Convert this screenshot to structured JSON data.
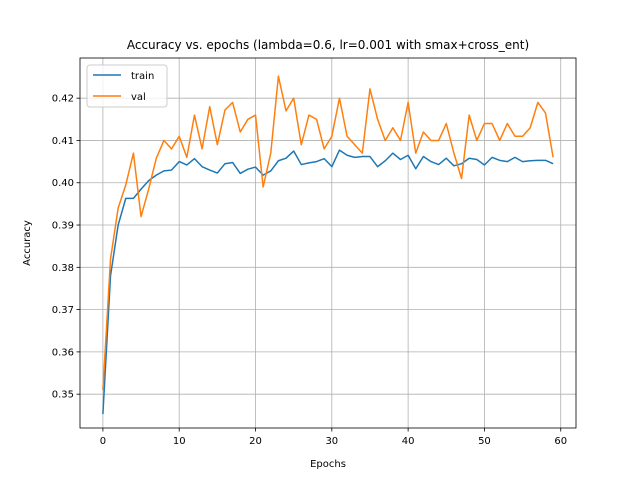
{
  "chart_data": {
    "type": "line",
    "title": "Accuracy vs. epochs (lambda=0.6, lr=0.001 with smax+cross_ent)",
    "xlabel": "Epochs",
    "ylabel": "Accuracy",
    "xlim": [
      -3,
      62
    ],
    "ylim": [
      0.342,
      0.4295
    ],
    "xticks": [
      0,
      10,
      20,
      30,
      40,
      50,
      60
    ],
    "yticks": [
      0.35,
      0.36,
      0.37,
      0.38,
      0.39,
      0.4,
      0.41,
      0.42
    ],
    "ytick_labels": [
      "0.35",
      "0.36",
      "0.37",
      "0.38",
      "0.39",
      "0.40",
      "0.41",
      "0.42"
    ],
    "grid": true,
    "legend_position": "upper-left",
    "x": [
      0,
      1,
      2,
      3,
      4,
      5,
      6,
      7,
      8,
      9,
      10,
      11,
      12,
      13,
      14,
      15,
      16,
      17,
      18,
      19,
      20,
      21,
      22,
      23,
      24,
      25,
      26,
      27,
      28,
      29,
      30,
      31,
      32,
      33,
      34,
      35,
      36,
      37,
      38,
      39,
      40,
      41,
      42,
      43,
      44,
      45,
      46,
      47,
      48,
      49,
      50,
      51,
      52,
      53,
      54,
      55,
      56,
      57,
      58,
      59
    ],
    "series": [
      {
        "name": "train",
        "color": "#1f77b4",
        "values": [
          0.3453,
          0.378,
          0.39,
          0.3963,
          0.3963,
          0.3985,
          0.4005,
          0.4018,
          0.4028,
          0.403,
          0.405,
          0.4042,
          0.4057,
          0.4038,
          0.403,
          0.4023,
          0.4045,
          0.4048,
          0.4022,
          0.4032,
          0.4037,
          0.4018,
          0.4028,
          0.4052,
          0.4058,
          0.4075,
          0.4043,
          0.4047,
          0.405,
          0.4057,
          0.4038,
          0.4077,
          0.4065,
          0.406,
          0.4062,
          0.4062,
          0.4038,
          0.4052,
          0.407,
          0.4055,
          0.4065,
          0.4033,
          0.4062,
          0.405,
          0.4043,
          0.4058,
          0.404,
          0.4045,
          0.4058,
          0.4055,
          0.4042,
          0.406,
          0.4053,
          0.405,
          0.406,
          0.405,
          0.4052,
          0.4053,
          0.4053,
          0.4045
        ]
      },
      {
        "name": "val",
        "color": "#ff7f0e",
        "values": [
          0.351,
          0.382,
          0.394,
          0.3995,
          0.407,
          0.392,
          0.3985,
          0.4058,
          0.41,
          0.408,
          0.411,
          0.406,
          0.416,
          0.408,
          0.418,
          0.409,
          0.4172,
          0.419,
          0.412,
          0.415,
          0.416,
          0.399,
          0.407,
          0.4252,
          0.417,
          0.42,
          0.409,
          0.416,
          0.415,
          0.408,
          0.411,
          0.42,
          0.411,
          0.409,
          0.407,
          0.4222,
          0.415,
          0.41,
          0.413,
          0.41,
          0.419,
          0.407,
          0.412,
          0.41,
          0.41,
          0.414,
          0.407,
          0.401,
          0.416,
          0.41,
          0.414,
          0.414,
          0.41,
          0.414,
          0.411,
          0.411,
          0.413,
          0.419,
          0.4165,
          0.406
        ]
      }
    ]
  }
}
